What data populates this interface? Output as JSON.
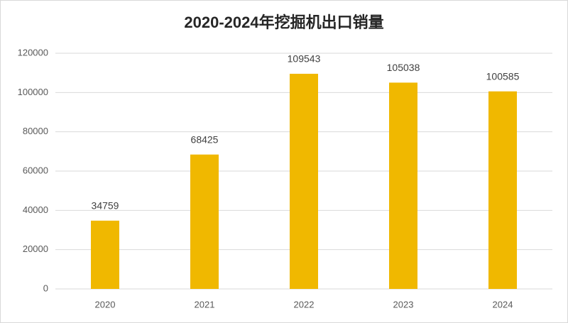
{
  "chart_data": {
    "type": "bar",
    "title": "2020-2024年挖掘机出口销量",
    "categories": [
      "2020",
      "2021",
      "2022",
      "2023",
      "2024"
    ],
    "values": [
      34759,
      68425,
      109543,
      105038,
      100585
    ],
    "color": "#f0b800",
    "ylim": [
      0,
      120000
    ],
    "yticks": [
      0,
      20000,
      40000,
      60000,
      80000,
      100000,
      120000
    ],
    "grid": true
  }
}
